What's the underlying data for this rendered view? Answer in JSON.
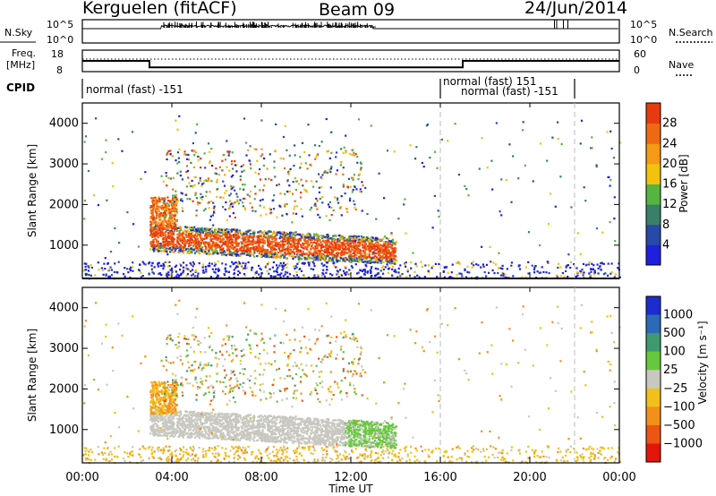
{
  "header": {
    "station": "Kerguelen (fitACF)",
    "beam": "Beam 09",
    "date": "24/Jun/2014"
  },
  "side_labels": {
    "nsky": "N.Sky",
    "nsearch": "N.Search",
    "freq_line1": "Freq.",
    "freq_line2": "[MHz]",
    "nave": "Nave",
    "cpid": "CPID"
  },
  "nsky_panel": {
    "left_ticks": [
      "10^5",
      "10^0"
    ],
    "right_ticks": [
      "10^5",
      "10^0"
    ]
  },
  "freq_panel": {
    "left_ticks": [
      "18",
      "8"
    ],
    "right_ticks": [
      "60",
      "0"
    ]
  },
  "cpid_panel": {
    "segments": [
      {
        "label": "normal (fast) -151"
      },
      {
        "label": "normal (fast) 151"
      },
      {
        "label": "normal (fast) -151"
      }
    ]
  },
  "power_panel": {
    "ylabel": "Slant Range [km]",
    "yticks": [
      "1000",
      "2000",
      "3000",
      "4000"
    ],
    "colorbar_label": "Power [dB]",
    "colorbar_ticks": [
      "4",
      "8",
      "12",
      "16",
      "20",
      "24",
      "28"
    ],
    "colors": [
      "#1f1fe0",
      "#2849a8",
      "#3a7f6a",
      "#56b440",
      "#f2c20c",
      "#f59a14",
      "#ee6a12",
      "#e83a10",
      "#e31a0e"
    ]
  },
  "velocity_panel": {
    "ylabel": "Slant Range [km]",
    "yticks": [
      "1000",
      "2000",
      "3000",
      "4000"
    ],
    "colorbar_label": "Velocity [m s⁻¹]",
    "colorbar_ticks": [
      "1000",
      "500",
      "100",
      "25",
      "−25",
      "−100",
      "−500",
      "−1000"
    ],
    "colors": [
      "#1c2ccf",
      "#2a6ab7",
      "#3f9a70",
      "#66c83c",
      "#c8c8c0",
      "#f2c01a",
      "#f3901a",
      "#ec5514",
      "#e3160c"
    ]
  },
  "xaxis": {
    "label": "Time UT",
    "ticks": [
      "00:00",
      "04:00",
      "08:00",
      "12:00",
      "16:00",
      "20:00",
      "00:00"
    ]
  },
  "chart_data": {
    "type": "heatmap",
    "x": [
      "00:00",
      "04:00",
      "08:00",
      "12:00",
      "16:00",
      "20:00",
      "00:00"
    ],
    "xlabel": "Time UT",
    "ylabel": "Slant Range [km]",
    "ylim": [
      180,
      4500
    ],
    "xlim_hours": [
      0,
      24
    ],
    "gridlines_dashed_hours": [
      16,
      22
    ],
    "power_colorbar": {
      "label": "Power [dB]",
      "ticks": [
        4,
        8,
        12,
        16,
        20,
        24,
        28
      ]
    },
    "velocity_colorbar": {
      "label": "Velocity [m s⁻¹]",
      "ticks": [
        1000,
        500,
        100,
        25,
        -25,
        -100,
        -500,
        -1000
      ]
    },
    "frequency_mhz": [
      {
        "from_hour": 0,
        "to_hour": 3,
        "value": 13
      },
      {
        "from_hour": 3,
        "to_hour": 17,
        "value": 10
      },
      {
        "from_hour": 17,
        "to_hour": 24,
        "value": 13
      }
    ],
    "cpid": [
      {
        "from_hour": 0,
        "to_hour": 16,
        "label": "normal (fast) -151"
      },
      {
        "from_hour": 16,
        "to_hour": 22,
        "label": "normal (fast) 151"
      },
      {
        "from_hour": 22,
        "to_hour": 24,
        "label": "normal (fast) -151"
      }
    ]
  }
}
